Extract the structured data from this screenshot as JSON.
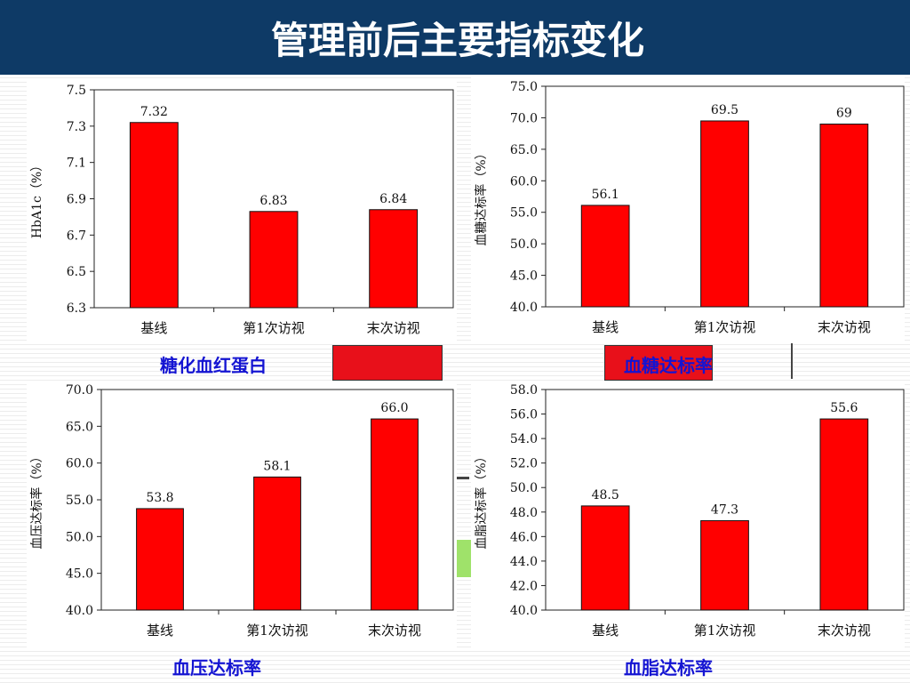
{
  "title": "管理前后主要指标变化",
  "colors": {
    "bar": "#ff0000",
    "title_bg": "#0e3a66",
    "caption": "#1414d2"
  },
  "chart_data": [
    {
      "type": "bar",
      "title": "糖化血红蛋白",
      "ylabel": "HbA1c（%）",
      "categories": [
        "基线",
        "第1次访视",
        "末次访视"
      ],
      "values": [
        7.32,
        6.83,
        6.84
      ],
      "value_labels": [
        "7.32",
        "6.83",
        "6.84"
      ],
      "ylim": [
        6.3,
        7.5
      ],
      "yticks": [
        6.3,
        6.5,
        6.7,
        6.9,
        7.1,
        7.3,
        7.5
      ],
      "ytick_labels": [
        "6.3",
        "6.5",
        "6.7",
        "6.9",
        "7.1",
        "7.3",
        "7.5"
      ]
    },
    {
      "type": "bar",
      "title": "血糖达标率",
      "ylabel": "血糖达标率（%）",
      "categories": [
        "基线",
        "第1次访视",
        "末次访视"
      ],
      "values": [
        56.1,
        69.5,
        69
      ],
      "value_labels": [
        "56.1",
        "69.5",
        "69"
      ],
      "ylim": [
        40,
        75
      ],
      "yticks": [
        40,
        45,
        50,
        55,
        60,
        65,
        70,
        75
      ],
      "ytick_labels": [
        "40.0",
        "45.0",
        "50.0",
        "55.0",
        "60.0",
        "65.0",
        "70.0",
        "75.0"
      ]
    },
    {
      "type": "bar",
      "title": "血压达标率",
      "ylabel": "血压达标率（%）",
      "categories": [
        "基线",
        "第1次访视",
        "末次访视"
      ],
      "values": [
        53.8,
        58.1,
        66.0
      ],
      "value_labels": [
        "53.8",
        "58.1",
        "66.0"
      ],
      "ylim": [
        40,
        70
      ],
      "yticks": [
        40,
        45,
        50,
        55,
        60,
        65,
        70
      ],
      "ytick_labels": [
        "40.0",
        "45.0",
        "50.0",
        "55.0",
        "60.0",
        "65.0",
        "70.0"
      ]
    },
    {
      "type": "bar",
      "title": "血脂达标率",
      "ylabel": "血脂达标率（%）",
      "categories": [
        "基线",
        "第1次访视",
        "末次访视"
      ],
      "values": [
        48.5,
        47.3,
        55.6
      ],
      "value_labels": [
        "48.5",
        "47.3",
        "55.6"
      ],
      "ylim": [
        40,
        58
      ],
      "yticks": [
        40,
        42,
        44,
        46,
        48,
        50,
        52,
        54,
        56,
        58
      ],
      "ytick_labels": [
        "40.0",
        "42.0",
        "44.0",
        "46.0",
        "48.0",
        "50.0",
        "52.0",
        "54.0",
        "56.0",
        "58.0"
      ]
    }
  ]
}
